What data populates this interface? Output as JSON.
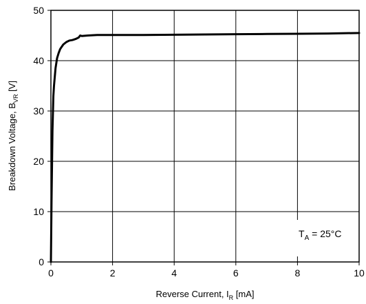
{
  "chart_data": {
    "type": "line",
    "xlabel": {
      "main": "Reverse Current, I",
      "sub": "R",
      "unit": " [mA]"
    },
    "ylabel": {
      "main": "Breakdown Voltage, B",
      "sub": "VR",
      "unit": " [V]"
    },
    "xlim": [
      0,
      10
    ],
    "ylim": [
      0,
      50
    ],
    "x_ticks": [
      "0",
      "2",
      "4",
      "6",
      "8",
      "10"
    ],
    "y_ticks": [
      "0",
      "10",
      "20",
      "30",
      "40",
      "50"
    ],
    "grid": true,
    "legend": "none",
    "annotation": {
      "main": "T",
      "sub": "A",
      "rest": " = 25°C",
      "position": "bottom-right"
    },
    "series": [
      {
        "x": [
          0,
          0.02,
          0.05,
          0.08,
          0.1,
          0.15,
          0.2,
          0.25,
          0.3,
          0.4,
          0.5,
          0.6,
          0.7,
          0.8,
          0.9,
          0.95,
          1.0,
          1.2,
          1.5,
          2,
          3,
          4,
          5,
          6,
          7,
          8,
          9,
          10
        ],
        "y": [
          0,
          12,
          26,
          33,
          35,
          38.5,
          40.5,
          41.5,
          42.3,
          43.2,
          43.7,
          44.0,
          44.1,
          44.3,
          44.6,
          45.0,
          44.9,
          45.0,
          45.1,
          45.1,
          45.1,
          45.15,
          45.2,
          45.25,
          45.3,
          45.35,
          45.4,
          45.5
        ]
      }
    ]
  },
  "colors": {
    "line": "#000000",
    "grid": "#000000",
    "background": "#ffffff"
  }
}
